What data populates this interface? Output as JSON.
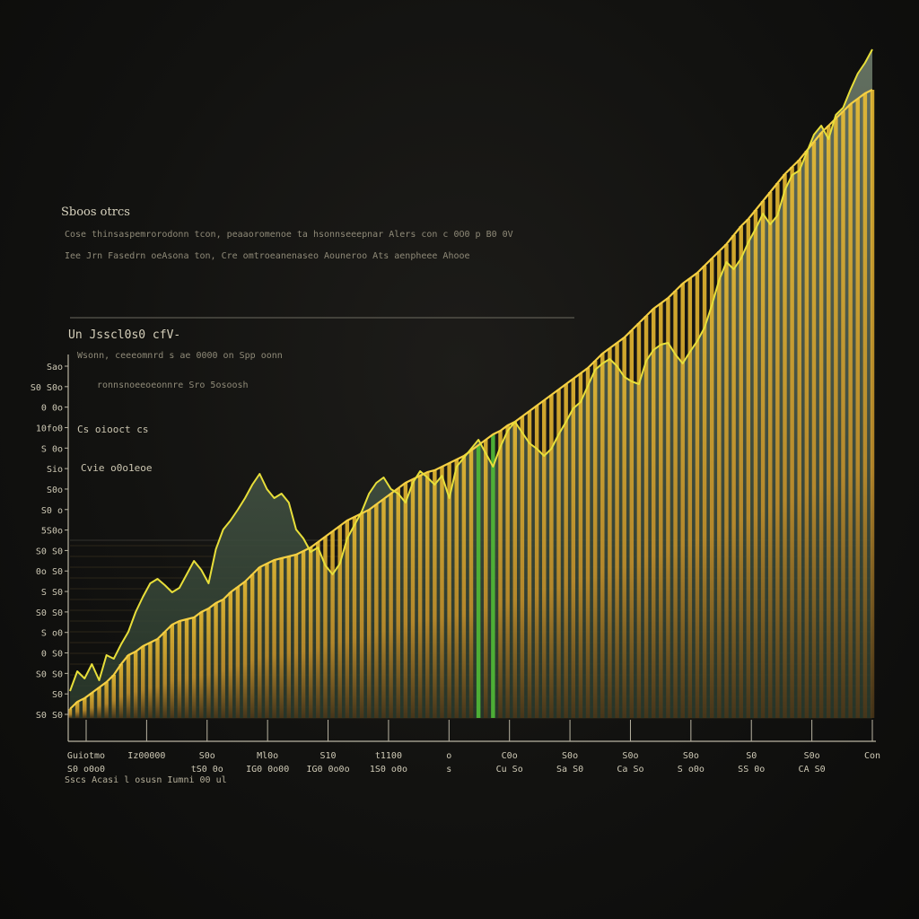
{
  "chart_data": {
    "type": "bar",
    "title": "Sboos otrcs",
    "description": [
      "Cose thinsaspemrorodonn tcon, peaaoromenoe ta hsonnseeepnar Alers con c 0O0 p B0 0V",
      "Iee Jrn Fasedrn oeAsona ton, Cre omtroeanenaseo Aouneroo Ats aenpheee Ahooe"
    ],
    "subtitle": "Un Jsscl0s0 cfV-",
    "subtitle_notes": [
      "Wsonn, ceeeomnrd s ae 0000 on Spp oonn",
      "ronnsnoeeoeonnre Sro 5osoosh"
    ],
    "annotations": [
      "Cs oiooct cs",
      "Cvie o0o1eoe"
    ],
    "source": "Sscs Acasi l osusn Iumni 00 ul",
    "y_tick_labels": [
      "Sao",
      "S0 S0o",
      "0 0o",
      "10fo0",
      "S 0o",
      "Sio",
      "S0o",
      "S0 o",
      "5S0o",
      "S0 S0",
      "0o S0",
      "S S0",
      "S0 S0",
      "S o0",
      "0 S0",
      "S0 S0",
      "S0",
      "S0 S0"
    ],
    "x_tick_labels": [
      [
        "Guiotmo",
        "S0 o0o0"
      ],
      [
        "Iz00000"
      ],
      [
        "S0o",
        "tS0 0o"
      ],
      [
        "Ml0o",
        "IG0 0o00"
      ],
      [
        "S10",
        "IG0 0o0o"
      ],
      [
        "t1100",
        "1S0 o0o"
      ],
      [
        "o",
        "s"
      ],
      [
        "C0o",
        "Cu So"
      ],
      [
        "S0o",
        "Sa S0"
      ],
      [
        "S0o",
        "Ca So"
      ],
      [
        "S0o",
        "S o0o"
      ],
      [
        "S0",
        "SS 0o"
      ],
      [
        "S0o",
        "CA S0"
      ],
      [
        "Con"
      ]
    ],
    "series": [
      {
        "type": "area-line",
        "color": "#e8df3a",
        "fill": "#37483c",
        "values": [
          30,
          52,
          44,
          60,
          42,
          70,
          66,
          82,
          96,
          118,
          135,
          150,
          155,
          148,
          140,
          145,
          160,
          175,
          165,
          150,
          188,
          210,
          220,
          232,
          245,
          260,
          272,
          255,
          245,
          250,
          240,
          210,
          200,
          185,
          190,
          170,
          160,
          172,
          200,
          215,
          230,
          250,
          262,
          268,
          255,
          250,
          240,
          262,
          275,
          268,
          260,
          270,
          245,
          280,
          290,
          300,
          310,
          295,
          280,
          302,
          320,
          330,
          318,
          306,
          300,
          292,
          300,
          316,
          330,
          345,
          352,
          370,
          388,
          395,
          400,
          392,
          380,
          375,
          372,
          398,
          410,
          416,
          418,
          405,
          395,
          408,
          420,
          435,
          460,
          488,
          508,
          500,
          512,
          530,
          545,
          562,
          550,
          560,
          588,
          605,
          610,
          630,
          650,
          660,
          645,
          672,
          680,
          700,
          718,
          730,
          745
        ]
      },
      {
        "type": "bars",
        "color": "#e9b830",
        "values": [
          10,
          18,
          22,
          28,
          34,
          40,
          48,
          60,
          70,
          74,
          80,
          84,
          88,
          96,
          104,
          108,
          110,
          112,
          118,
          122,
          128,
          132,
          140,
          146,
          152,
          160,
          168,
          172,
          176,
          178,
          180,
          182,
          186,
          190,
          196,
          202,
          208,
          214,
          220,
          224,
          228,
          232,
          238,
          244,
          250,
          256,
          262,
          266,
          270,
          274,
          276,
          280,
          284,
          288,
          292,
          298,
          304,
          310,
          316,
          320,
          326,
          330,
          336,
          342,
          348,
          354,
          360,
          366,
          372,
          378,
          384,
          390,
          398,
          406,
          412,
          418,
          424,
          432,
          440,
          448,
          456,
          462,
          468,
          476,
          484,
          490,
          496,
          504,
          512,
          520,
          528,
          538,
          548,
          556,
          566,
          576,
          586,
          596,
          606,
          614,
          622,
          632,
          642,
          652,
          660,
          668,
          676,
          684,
          690,
          696,
          700
        ]
      },
      {
        "type": "highlight",
        "color": "#4fb537",
        "indices": [
          56,
          58
        ]
      }
    ],
    "xlim": [
      0,
      110
    ],
    "ylim": [
      0,
      760
    ],
    "grid": true
  }
}
